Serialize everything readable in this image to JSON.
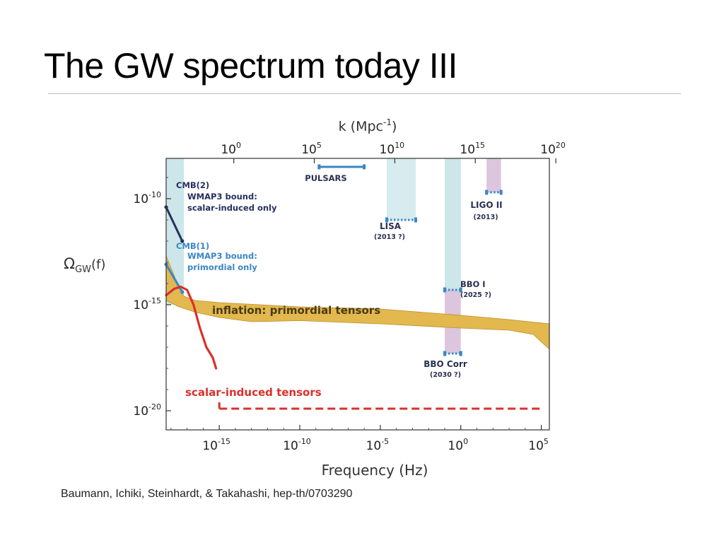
{
  "slide": {
    "title": "The GW spectrum today III",
    "citation": "Baumann, Ichiki, Steinhardt, & Takahashi, hep-th/0703290"
  },
  "colors": {
    "cmb_band": "#cce6e9",
    "lisa_band": "#d6ecee",
    "pink_band": "#dcc6dd",
    "inflation_band": "#e2b84f",
    "inflation_edge": "#b98f2a",
    "scalar_red": "#d9312b",
    "cmb2_navy": "#26305e",
    "cmb1_blue": "#3a86c6",
    "instrument_blue": "#3a86c6",
    "axis": "#333333"
  },
  "chart_data": {
    "type": "line",
    "xscale": "log",
    "yscale": "log",
    "xlabel": "Frequency (Hz)",
    "ylabel_main": "Ω",
    "ylabel_sub": "GW",
    "ylabel_tail": "(f)",
    "top_axis_label_main": "k (Mpc",
    "top_axis_label_sup": "-1",
    "top_axis_label_tail": ")",
    "xlim": [
      -18.3,
      5.5
    ],
    "ylim": [
      -20.9,
      -8.1
    ],
    "x_ticks": [
      {
        "v": -15,
        "base": "10",
        "exp": "-15"
      },
      {
        "v": -10,
        "base": "10",
        "exp": "-10"
      },
      {
        "v": -5,
        "base": "10",
        "exp": "-5"
      },
      {
        "v": 0,
        "base": "10",
        "exp": "0"
      },
      {
        "v": 5,
        "base": "10",
        "exp": "5"
      }
    ],
    "y_ticks": [
      {
        "v": -10,
        "base": "10",
        "exp": "-10"
      },
      {
        "v": -15,
        "base": "10",
        "exp": "-15"
      },
      {
        "v": -20,
        "base": "10",
        "exp": "-20"
      }
    ],
    "top_ticks": [
      {
        "f": -14.1,
        "base": "10",
        "exp": "0"
      },
      {
        "f": -9.1,
        "base": "10",
        "exp": "5"
      },
      {
        "f": -4.1,
        "base": "10",
        "exp": "10"
      },
      {
        "f": 0.9,
        "base": "10",
        "exp": "15"
      },
      {
        "f": 5.9,
        "base": "10",
        "exp": "20"
      }
    ],
    "bands": [
      {
        "key": "cmb",
        "x0": -18.3,
        "x1": -17.2,
        "y0": -15.0,
        "y1": -8.1,
        "color": "cmb_band"
      },
      {
        "key": "lisa",
        "x0": -4.6,
        "x1": -2.8,
        "y0": -11.0,
        "y1": -8.1,
        "color": "lisa_band"
      },
      {
        "key": "bbo",
        "x0": -1.0,
        "x1": 0.0,
        "y0": -14.3,
        "y1": -8.1,
        "color": "cmb_band"
      },
      {
        "key": "bbo-corr",
        "x0": -1.0,
        "x1": 0.0,
        "y0": -17.3,
        "y1": -14.3,
        "color": "pink_band"
      },
      {
        "key": "ligo",
        "x0": 1.6,
        "x1": 2.5,
        "y0": -9.7,
        "y1": -8.1,
        "color": "pink_band"
      }
    ],
    "series": [
      {
        "key": "inflation",
        "name": "inflation: primordial tensors",
        "upper": [
          [
            -18.3,
            -12.7
          ],
          [
            -17.6,
            -14.0
          ],
          [
            -17.2,
            -14.6
          ],
          [
            -16.5,
            -14.8
          ],
          [
            -15.0,
            -14.9
          ],
          [
            -10.0,
            -15.1
          ],
          [
            -5.0,
            -15.2
          ],
          [
            0.0,
            -15.5
          ],
          [
            3.0,
            -15.7
          ],
          [
            5.5,
            -15.9
          ]
        ],
        "lower": [
          [
            5.5,
            -17.1
          ],
          [
            4.5,
            -16.4
          ],
          [
            3.0,
            -16.2
          ],
          [
            0.0,
            -16.1
          ],
          [
            -5.0,
            -15.9
          ],
          [
            -10.0,
            -15.75
          ],
          [
            -13.0,
            -15.8
          ],
          [
            -15.0,
            -15.6
          ],
          [
            -16.5,
            -15.35
          ],
          [
            -17.5,
            -15.1
          ],
          [
            -18.3,
            -14.8
          ]
        ]
      },
      {
        "key": "scalar-induced",
        "name": "scalar-induced tensors",
        "solid": [
          [
            -18.3,
            -14.55
          ],
          [
            -17.8,
            -14.25
          ],
          [
            -17.4,
            -14.15
          ],
          [
            -17.0,
            -14.3
          ],
          [
            -16.6,
            -15.0
          ],
          [
            -16.2,
            -16.1
          ],
          [
            -15.8,
            -17.0
          ],
          [
            -15.4,
            -17.5
          ],
          [
            -15.2,
            -18.0
          ]
        ],
        "tail": [
          [
            -15.0,
            -19.6
          ],
          [
            -15.0,
            -19.9
          ]
        ],
        "dashed": [
          [
            -15.0,
            -19.9
          ],
          [
            5.0,
            -19.9
          ]
        ]
      }
    ],
    "bounds": [
      {
        "key": "cmb2",
        "points": [
          [
            -18.3,
            -10.4
          ],
          [
            -17.3,
            -12.0
          ]
        ],
        "color": "cmb2_navy"
      },
      {
        "key": "cmb1",
        "points": [
          [
            -18.3,
            -13.1
          ],
          [
            -17.3,
            -14.4
          ]
        ],
        "color": "cmb1_blue"
      }
    ],
    "instruments": [
      {
        "key": "pulsars",
        "x0": -8.8,
        "x1": -6.0,
        "y": -8.5,
        "style": "solid"
      },
      {
        "key": "lisa",
        "x0": -4.6,
        "x1": -2.8,
        "y": -11.0,
        "style": "dotted"
      },
      {
        "key": "ligo",
        "x0": 1.6,
        "x1": 2.5,
        "y": -9.7,
        "style": "dotted"
      },
      {
        "key": "bbo",
        "x0": -1.0,
        "x1": 0.0,
        "y": -14.3,
        "style": "dotted"
      },
      {
        "key": "bbo-corr",
        "x0": -1.0,
        "x1": 0.0,
        "y": -17.3,
        "style": "dotted"
      }
    ],
    "annotations": {
      "cmb2": "CMB(2)",
      "wmap_scalar_1": "WMAP3 bound:",
      "wmap_scalar_2": "scalar-induced only",
      "cmb1": "CMB(1)",
      "wmap_prim_1": "WMAP3 bound:",
      "wmap_prim_2": "primordial only",
      "pulsars": "PULSARS",
      "lisa": "LISA",
      "lisa_date": "(2013 ?)",
      "ligo": "LIGO II",
      "ligo_date": "(2013)",
      "bbo": "BBO I",
      "bbo_date": "(2025 ?)",
      "bbo_corr": "BBO Corr",
      "bbo_corr_date": "(2030 ?)",
      "inflation": "inflation: primordial tensors",
      "scalar": "scalar-induced tensors"
    }
  }
}
